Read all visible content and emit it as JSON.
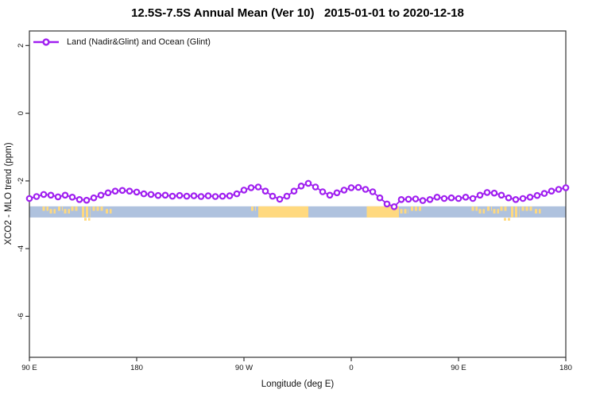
{
  "title": "12.5S-7.5S Annual Mean (Ver 10)   2015-01-01 to 2020-12-18",
  "legend": {
    "label": "Land (Nadir&Glint) and Ocean (Glint)"
  },
  "chart_data": {
    "type": "line",
    "title": "12.5S-7.5S Annual Mean (Ver 10)   2015-01-01 to 2020-12-18",
    "xlabel": "Longitude (deg E)",
    "ylabel": "XCO2 - MLO trend (ppm)",
    "xlim": [
      90,
      540
    ],
    "ylim": [
      -7.21,
      2.43
    ],
    "grid": false,
    "legend_position": "top-left",
    "x_ticks": [
      {
        "value": 90,
        "label": "90 E"
      },
      {
        "value": 180,
        "label": "180"
      },
      {
        "value": 270,
        "label": "90 W"
      },
      {
        "value": 360,
        "label": "0"
      },
      {
        "value": 450,
        "label": "90 E"
      },
      {
        "value": 540,
        "label": "180"
      }
    ],
    "y_ticks": [
      2,
      0,
      -2,
      -4,
      -6
    ],
    "x_note": "longitude plotted continuously eastward from 90E (90 to 540 deg)",
    "series": [
      {
        "name": "Land (Nadir&Glint) and Ocean (Glint)",
        "color": "#a020f0",
        "marker": "open-circle",
        "x": [
          90,
          96,
          102,
          108,
          114,
          120,
          126,
          132,
          138,
          144,
          150,
          156,
          162,
          168,
          174,
          180,
          186,
          192,
          198,
          204,
          210,
          216,
          222,
          228,
          234,
          240,
          246,
          252,
          258,
          264,
          270,
          276,
          282,
          288,
          294,
          300,
          306,
          312,
          318,
          324,
          330,
          336,
          342,
          348,
          354,
          360,
          366,
          372,
          378,
          384,
          390,
          396,
          402,
          408,
          414,
          420,
          426,
          432,
          438,
          444,
          450,
          456,
          462,
          468,
          474,
          480,
          486,
          492,
          498,
          504,
          510,
          516,
          522,
          528,
          534,
          540
        ],
        "y": [
          -2.52,
          -2.46,
          -2.4,
          -2.42,
          -2.47,
          -2.42,
          -2.48,
          -2.55,
          -2.57,
          -2.5,
          -2.42,
          -2.35,
          -2.3,
          -2.28,
          -2.3,
          -2.33,
          -2.38,
          -2.4,
          -2.43,
          -2.42,
          -2.45,
          -2.43,
          -2.45,
          -2.44,
          -2.46,
          -2.44,
          -2.46,
          -2.45,
          -2.44,
          -2.38,
          -2.27,
          -2.2,
          -2.18,
          -2.3,
          -2.45,
          -2.54,
          -2.45,
          -2.3,
          -2.15,
          -2.07,
          -2.18,
          -2.32,
          -2.42,
          -2.35,
          -2.27,
          -2.2,
          -2.19,
          -2.25,
          -2.32,
          -2.5,
          -2.68,
          -2.76,
          -2.55,
          -2.54,
          -2.53,
          -2.58,
          -2.55,
          -2.48,
          -2.52,
          -2.5,
          -2.52,
          -2.48,
          -2.52,
          -2.42,
          -2.34,
          -2.36,
          -2.42,
          -2.5,
          -2.55,
          -2.52,
          -2.48,
          -2.43,
          -2.37,
          -2.3,
          -2.25,
          -2.2
        ]
      }
    ],
    "map_strip": {
      "description": "ocean/land strip for latitude band 12.5S-7.5S",
      "ocean_color": "#afc2de",
      "land_color": "#ffd97f",
      "y_top": -2.75,
      "y_bottom": -3.08,
      "land_fragments": [
        {
          "lon": [
            101,
            106
          ],
          "row": "top"
        },
        {
          "lon": [
            107,
            112
          ],
          "row": "mid"
        },
        {
          "lon": [
            114,
            118
          ],
          "row": "top"
        },
        {
          "lon": [
            119,
            124
          ],
          "row": "mid"
        },
        {
          "lon": [
            125,
            131
          ],
          "row": "top"
        },
        {
          "lon": [
            134,
            141
          ],
          "row": "full"
        },
        {
          "lon": [
            136,
            141
          ],
          "row": "below"
        },
        {
          "lon": [
            143,
            152
          ],
          "row": "top"
        },
        {
          "lon": [
            154,
            159
          ],
          "row": "mid"
        },
        {
          "lon": [
            276,
            280
          ],
          "row": "top"
        },
        {
          "lon": [
            282,
            324
          ],
          "row": "solid"
        },
        {
          "lon": [
            373,
            400
          ],
          "row": "solid"
        },
        {
          "lon": [
            401,
            408
          ],
          "row": "mid"
        },
        {
          "lon": [
            410,
            420
          ],
          "row": "top"
        },
        {
          "lon": [
            461,
            466
          ],
          "row": "top"
        },
        {
          "lon": [
            467,
            472
          ],
          "row": "mid"
        },
        {
          "lon": [
            474,
            478
          ],
          "row": "top"
        },
        {
          "lon": [
            479,
            484
          ],
          "row": "mid"
        },
        {
          "lon": [
            485,
            491
          ],
          "row": "top"
        },
        {
          "lon": [
            488,
            494
          ],
          "row": "below"
        },
        {
          "lon": [
            494,
            501
          ],
          "row": "full"
        },
        {
          "lon": [
            503,
            512
          ],
          "row": "top"
        },
        {
          "lon": [
            514,
            519
          ],
          "row": "mid"
        }
      ]
    }
  }
}
